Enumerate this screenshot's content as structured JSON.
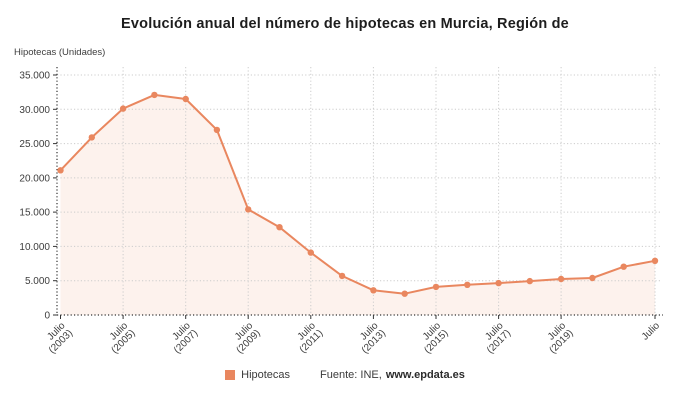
{
  "chart_data": {
    "type": "area-line",
    "title": "Evolución anual del número de hipotecas en Murcia, Región de",
    "ylabel": "Hipotecas (Unidades)",
    "xlabel": "",
    "categories": [
      "Julio (2003)",
      "Julio (2004)",
      "Julio (2005)",
      "Julio (2006)",
      "Julio (2007)",
      "Julio (2008)",
      "Julio (2009)",
      "Julio (2010)",
      "Julio (2011)",
      "Julio (2012)",
      "Julio (2013)",
      "Julio (2014)",
      "Julio (2015)",
      "Julio (2016)",
      "Julio (2017)",
      "Julio (2018)",
      "Julio (2019)",
      "Julio (2020)",
      "Julio (2021)",
      "Julio"
    ],
    "series": [
      {
        "name": "Hipotecas",
        "color": "#e9875f",
        "values": [
          21100,
          25900,
          30100,
          32100,
          31500,
          27000,
          15400,
          12800,
          9100,
          5700,
          3600,
          3100,
          4100,
          4400,
          4650,
          4950,
          5250,
          5400,
          7050,
          7900
        ]
      }
    ],
    "x_labeled_ticks": [
      {
        "index": 0,
        "line1": "Julio",
        "line2": "(2003)"
      },
      {
        "index": 2,
        "line1": "Julio",
        "line2": "(2005)"
      },
      {
        "index": 4,
        "line1": "Julio",
        "line2": "(2007)"
      },
      {
        "index": 6,
        "line1": "Julio",
        "line2": "(2009)"
      },
      {
        "index": 8,
        "line1": "Julio",
        "line2": "(2011)"
      },
      {
        "index": 10,
        "line1": "Julio",
        "line2": "(2013)"
      },
      {
        "index": 12,
        "line1": "Julio",
        "line2": "(2015)"
      },
      {
        "index": 14,
        "line1": "Julio",
        "line2": "(2017)"
      },
      {
        "index": 16,
        "line1": "Julio",
        "line2": "(2019)"
      },
      {
        "index": 19,
        "line1": "Julio",
        "line2": ""
      }
    ],
    "ylim": [
      0,
      35000
    ],
    "y_ticks": [
      0,
      5000,
      10000,
      15000,
      20000,
      25000,
      30000,
      35000
    ],
    "grid": true,
    "legend_position": "bottom",
    "colors": {
      "series": "#e9875f",
      "area_fill": "rgba(233,135,95,0.11)",
      "grid": "#cccccc",
      "axis": "#333333",
      "tick_text": "#3d3d3d"
    },
    "source_prefix": "Fuente: INE,",
    "source_site": "www.epdata.es"
  }
}
